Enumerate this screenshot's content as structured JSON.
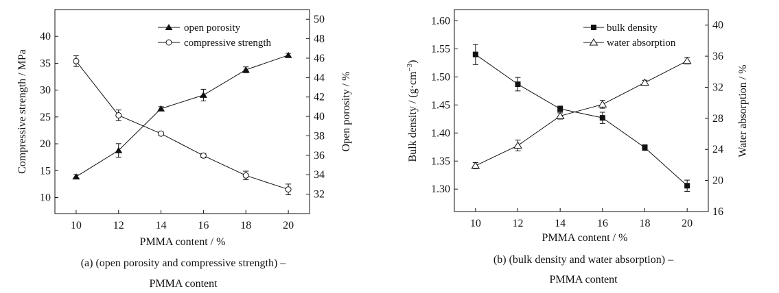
{
  "chart_data": [
    {
      "type": "line",
      "id": "a",
      "x": [
        10,
        12,
        14,
        16,
        18,
        20
      ],
      "xlabel": "PMMA content / %",
      "ylabel_left": "Compressive strength / MPa",
      "ylabel_right": "Open porosity / %",
      "xlim": [
        9,
        21
      ],
      "ylim_left": [
        7,
        45
      ],
      "ylim_right": [
        30,
        51
      ],
      "xticks": [
        "10",
        "12",
        "14",
        "16",
        "18",
        "20"
      ],
      "yticks_left": [
        "10",
        "15",
        "20",
        "25",
        "30",
        "35",
        "40"
      ],
      "yticks_right": [
        "32",
        "34",
        "36",
        "38",
        "40",
        "42",
        "44",
        "46",
        "48",
        "50"
      ],
      "series": [
        {
          "name": "open porosity",
          "axis": "right",
          "marker": "filled-triangle",
          "values": [
            33.8,
            36.5,
            40.8,
            42.2,
            44.8,
            46.3
          ],
          "errors": [
            0.2,
            0.7,
            0.2,
            0.6,
            0.3,
            0.2
          ]
        },
        {
          "name": "compressive strength",
          "axis": "left",
          "marker": "open-circle",
          "values": [
            35.4,
            25.3,
            21.9,
            17.8,
            14.1,
            11.5
          ],
          "errors": [
            1.0,
            1.0,
            0.3,
            0.4,
            0.8,
            1.0
          ]
        }
      ],
      "caption_line1": "(a) (open porosity and compressive strength) –",
      "caption_line2": "PMMA content"
    },
    {
      "type": "line",
      "id": "b",
      "x": [
        10,
        12,
        14,
        16,
        18,
        20
      ],
      "xlabel": "PMMA content / %",
      "ylabel_left_main": "Bulk density / (g·cm",
      "ylabel_left_sup": "−3",
      "ylabel_left_end": ")",
      "ylabel_right": "Water absorption / %",
      "xlim": [
        9,
        21
      ],
      "ylim_left": [
        1.26,
        1.62
      ],
      "ylim_right": [
        16,
        42
      ],
      "xticks": [
        "10",
        "12",
        "14",
        "16",
        "18",
        "20"
      ],
      "yticks_left": [
        "1.30",
        "1.35",
        "1.40",
        "1.45",
        "1.50",
        "1.55",
        "1.60"
      ],
      "yticks_right": [
        "16",
        "20",
        "24",
        "28",
        "32",
        "36",
        "40"
      ],
      "series": [
        {
          "name": "bulk density",
          "axis": "left",
          "marker": "filled-square",
          "values": [
            1.54,
            1.487,
            1.443,
            1.427,
            1.374,
            1.306
          ],
          "errors": [
            0.018,
            0.012,
            0.005,
            0.01,
            0.005,
            0.01
          ]
        },
        {
          "name": "water absorption",
          "axis": "right",
          "marker": "open-triangle",
          "values": [
            21.9,
            24.5,
            28.3,
            29.8,
            32.6,
            35.4
          ],
          "errors": [
            0.4,
            0.7,
            0.4,
            0.5,
            0.3,
            0.4
          ]
        }
      ],
      "caption_line1": "(b) (bulk density and water absorption) –",
      "caption_line2": "PMMA content"
    }
  ]
}
